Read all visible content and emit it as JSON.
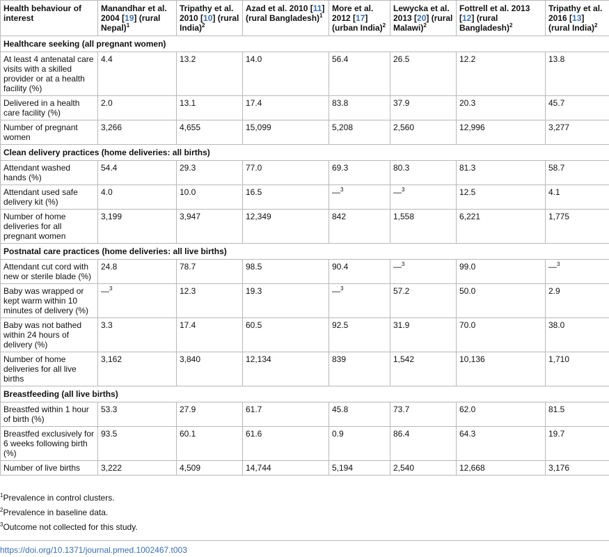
{
  "table": {
    "header_first": "Health behaviour of interest",
    "studies": [
      {
        "pre": "Manandhar et al. 2004 [",
        "ref": "19",
        "post": "] (rural Nepal)",
        "sup": "1"
      },
      {
        "pre": "Tripathy et al. 2010 [",
        "ref": "10",
        "post": "] (rural India)",
        "sup": "2"
      },
      {
        "pre": "Azad et al. 2010 [",
        "ref": "11",
        "post": "] (rural Bangladesh)",
        "sup": "1"
      },
      {
        "pre": "More et al. 2012 [",
        "ref": "17",
        "post": "] (urban India)",
        "sup": "2"
      },
      {
        "pre": "Lewycka et al. 2013 [",
        "ref": "20",
        "post": "] (rural Malawi)",
        "sup": "2"
      },
      {
        "pre": "Fottrell et al. 2013 [",
        "ref": "12",
        "post": "] (rural Bangladesh)",
        "sup": "2"
      },
      {
        "pre": "Tripathy et al. 2016 [",
        "ref": "13",
        "post": "] (rural India)",
        "sup": "2"
      }
    ],
    "sections": [
      {
        "title": "Healthcare seeking (all pregnant women)",
        "rows": [
          {
            "label": "At least 4 antenatal care visits with a skilled provider or at a health facility (%)",
            "values": [
              "4.4",
              "13.2",
              "14.0",
              "56.4",
              "26.5",
              "12.2",
              "13.8"
            ]
          },
          {
            "label": "Delivered in a health care facility (%)",
            "values": [
              "2.0",
              "13.1",
              "17.4",
              "83.8",
              "37.9",
              "20.3",
              "45.7"
            ]
          },
          {
            "label": "Number of pregnant women",
            "values": [
              "3,266",
              "4,655",
              "15,099",
              "5,208",
              "2,560",
              "12,996",
              "3,277"
            ]
          }
        ]
      },
      {
        "title": "Clean delivery practices (home deliveries: all births)",
        "rows": [
          {
            "label": "Attendant washed hands (%)",
            "values": [
              "54.4",
              "29.3",
              "77.0",
              "69.3",
              "80.3",
              "81.3",
              "58.7"
            ]
          },
          {
            "label": "Attendant used safe delivery kit (%)",
            "values": [
              "4.0",
              "10.0",
              "16.5",
              "—3",
              "—3",
              "12.5",
              "4.1"
            ]
          },
          {
            "label": "Number of home deliveries for all pregnant women",
            "values": [
              "3,199",
              "3,947",
              "12,349",
              "842",
              "1,558",
              "6,221",
              "1,775"
            ]
          }
        ]
      },
      {
        "title": "Postnatal care practices (home deliveries: all live births)",
        "rows": [
          {
            "label": "Attendant cut cord with new or sterile blade (%)",
            "values": [
              "24.8",
              "78.7",
              "98.5",
              "90.4",
              "—3",
              "99.0",
              "—3"
            ]
          },
          {
            "label": "Baby was wrapped or kept warm within 10 minutes of delivery (%)",
            "values": [
              "—3",
              "12.3",
              "19.3",
              "—3",
              "57.2",
              "50.0",
              "2.9"
            ]
          },
          {
            "label": "Baby was not bathed within 24 hours of delivery (%)",
            "values": [
              "3.3",
              "17.4",
              "60.5",
              "92.5",
              "31.9",
              "70.0",
              "38.0"
            ]
          },
          {
            "label": "Number of home deliveries for all live births",
            "values": [
              "3,162",
              "3,840",
              "12,134",
              "839",
              "1,542",
              "10,136",
              "1,710"
            ]
          }
        ]
      },
      {
        "title": "Breastfeeding (all live births)",
        "rows": [
          {
            "label": "Breastfed within 1 hour of birth (%)",
            "values": [
              "53.3",
              "27.9",
              "61.7",
              "45.8",
              "73.7",
              "62.0",
              "81.5"
            ]
          },
          {
            "label": "Breastfed exclusively for 6 weeks following birth (%)",
            "values": [
              "93.5",
              "60.1",
              "61.6",
              "0.9",
              "86.4",
              "64.3",
              "19.7"
            ]
          },
          {
            "label": "Number of live births",
            "values": [
              "3,222",
              "4,509",
              "14,744",
              "5,194",
              "2,540",
              "12,668",
              "3,176"
            ]
          }
        ]
      }
    ]
  },
  "footnotes": [
    {
      "sup": "1",
      "text": "Prevalence in control clusters."
    },
    {
      "sup": "2",
      "text": "Prevalence in baseline data."
    },
    {
      "sup": "3",
      "text": "Outcome not collected for this study."
    }
  ],
  "doi": "https://doi.org/10.1371/journal.pmed.1002467.t003",
  "colors": {
    "link": "#3a6fb0",
    "border": "#b8b8b8",
    "text": "#111111"
  }
}
